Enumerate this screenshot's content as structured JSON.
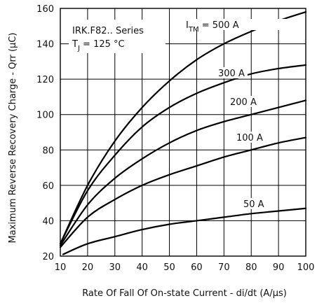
{
  "chart_data": {
    "type": "line",
    "title": "",
    "xlabel": "Rate Of Fall Of On-state Current - di/dt (A/µs)",
    "ylabel": "Maximum Reverse Recovery Charge - Qrr (µC)",
    "xlim": [
      10,
      100
    ],
    "ylim": [
      20,
      160
    ],
    "x_ticks": [
      "10",
      "20",
      "30",
      "40",
      "50",
      "60",
      "70",
      "80",
      "90",
      "100"
    ],
    "y_ticks": [
      "20",
      "40",
      "60",
      "80",
      "100",
      "120",
      "140",
      "160"
    ],
    "grid": true,
    "legend": "inline labels",
    "annotations": {
      "series": "IRK.F82.. Series",
      "tj_symbol": "T",
      "tj_sub": "J",
      "tj_value": " = 125 °C"
    },
    "series": [
      {
        "name": "I_TM = 500 A",
        "label_main": "I",
        "label_sub": "TM",
        "label_tail": " = 500 A",
        "x": [
          10,
          20,
          30,
          40,
          50,
          60,
          70,
          80,
          90,
          100
        ],
        "y": [
          27,
          60,
          85,
          104,
          119,
          131,
          140,
          147,
          153,
          158
        ]
      },
      {
        "name": "300 A",
        "label_main": "300 A",
        "label_sub": "",
        "label_tail": "",
        "x": [
          10,
          20,
          30,
          40,
          50,
          60,
          70,
          80,
          90,
          100
        ],
        "y": [
          27,
          57,
          77,
          93,
          104,
          112,
          118,
          123,
          126,
          128
        ]
      },
      {
        "name": "200 A",
        "label_main": "200 A",
        "label_sub": "",
        "label_tail": "",
        "x": [
          10,
          20,
          30,
          40,
          50,
          60,
          70,
          80,
          90,
          100
        ],
        "y": [
          26,
          49,
          64,
          75,
          84,
          91,
          96,
          100,
          104,
          108
        ]
      },
      {
        "name": "100 A",
        "label_main": "100 A",
        "label_sub": "",
        "label_tail": "",
        "x": [
          10,
          20,
          30,
          40,
          50,
          60,
          70,
          80,
          90,
          100
        ],
        "y": [
          25,
          42,
          52,
          60,
          66,
          71,
          76,
          80,
          84,
          87
        ]
      },
      {
        "name": "50 A",
        "label_main": "50 A",
        "label_sub": "",
        "label_tail": "",
        "x": [
          11,
          20,
          30,
          40,
          50,
          60,
          70,
          80,
          90,
          100
        ],
        "y": [
          21,
          27,
          31,
          35,
          38,
          40,
          42,
          44,
          45.5,
          47
        ]
      }
    ]
  }
}
